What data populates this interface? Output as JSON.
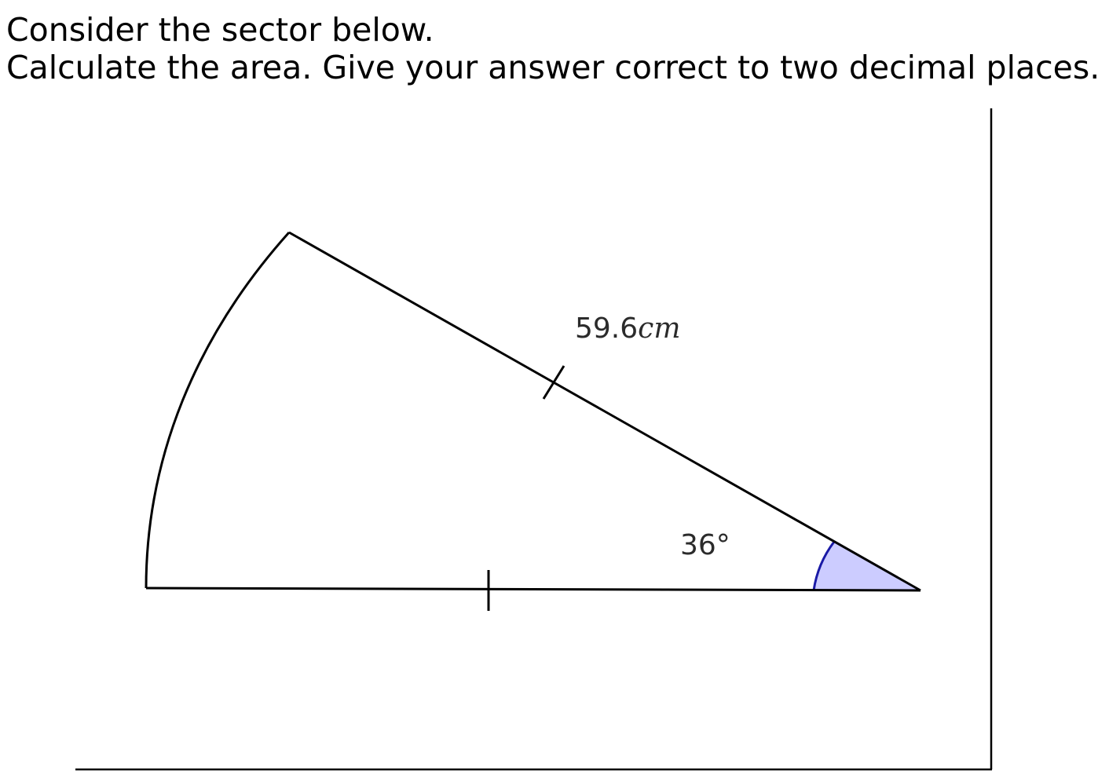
{
  "question": {
    "line1": "Consider the sector below.",
    "line2": "Calculate the area. Give your answer correct to two decimal places."
  },
  "diagram": {
    "radius_label": {
      "value": "59.6",
      "unit": "cm"
    },
    "angle_label": "36°",
    "colors": {
      "angle_fill": "#ccccff",
      "angle_stroke": "#1a1aa6",
      "line": "#000000"
    }
  }
}
